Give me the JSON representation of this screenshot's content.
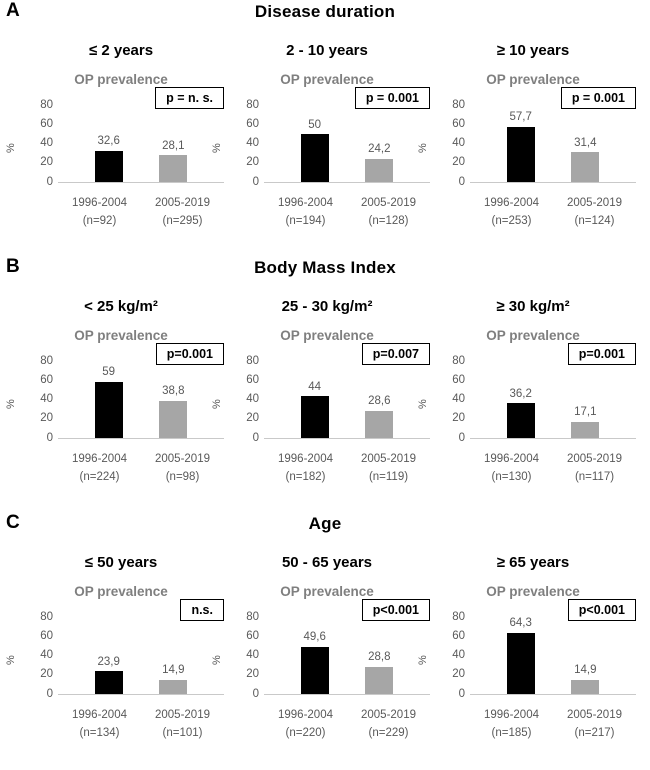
{
  "colors": {
    "bar_1996_2004": "#000000",
    "bar_2005_2019": "#a6a6a6",
    "subtitle_gray": "#7f7f7f",
    "axis_text_gray": "#595959",
    "axis_line": "#c9c9c9",
    "pbox_border": "#000000"
  },
  "panels": [
    {
      "letter": "A",
      "title": "Disease duration",
      "chart_indexes": [
        0,
        1,
        2
      ]
    },
    {
      "letter": "B",
      "title": "Body Mass Index",
      "chart_indexes": [
        3,
        4,
        5
      ]
    },
    {
      "letter": "C",
      "title": "Age",
      "chart_indexes": [
        6,
        7,
        8
      ]
    }
  ],
  "chart_data": [
    {
      "type": "bar",
      "panel": "A",
      "title": "≤ 2 years",
      "subtitle": "OP prevalence",
      "p_label": "p = n. s.",
      "ylabel": "%",
      "yticks": [
        0,
        20,
        40,
        60,
        80
      ],
      "ylim": [
        0,
        90
      ],
      "grid": false,
      "categories": [
        "1996-2004",
        "2005-2019"
      ],
      "n_labels": [
        "(n=92)",
        "(n=295)"
      ],
      "values": [
        32.6,
        28.1
      ],
      "value_labels": [
        "32,6",
        "28,1"
      ]
    },
    {
      "type": "bar",
      "panel": "A",
      "title": "2 - 10 years",
      "subtitle": "OP prevalence",
      "p_label": "p = 0.001",
      "ylabel": "%",
      "yticks": [
        0,
        20,
        40,
        60,
        80
      ],
      "ylim": [
        0,
        90
      ],
      "grid": false,
      "categories": [
        "1996-2004",
        "2005-2019"
      ],
      "n_labels": [
        "(n=194)",
        "(n=128)"
      ],
      "values": [
        50,
        24.2
      ],
      "value_labels": [
        "50",
        "24,2"
      ]
    },
    {
      "type": "bar",
      "panel": "A",
      "title": "≥ 10 years",
      "subtitle": "OP prevalence",
      "p_label": "p = 0.001",
      "ylabel": "%",
      "yticks": [
        0,
        20,
        40,
        60,
        80
      ],
      "ylim": [
        0,
        90
      ],
      "grid": false,
      "categories": [
        "1996-2004",
        "2005-2019"
      ],
      "n_labels": [
        "(n=253)",
        "(n=124)"
      ],
      "values": [
        57.7,
        31.4
      ],
      "value_labels": [
        "57,7",
        "31,4"
      ]
    },
    {
      "type": "bar",
      "panel": "B",
      "title": "< 25 kg/m²",
      "subtitle": "OP prevalence",
      "p_label": "p=0.001",
      "ylabel": "%",
      "yticks": [
        0,
        20,
        40,
        60,
        80
      ],
      "ylim": [
        0,
        90
      ],
      "grid": false,
      "categories": [
        "1996-2004",
        "2005-2019"
      ],
      "n_labels": [
        "(n=224)",
        "(n=98)"
      ],
      "values": [
        59,
        38.8
      ],
      "value_labels": [
        "59",
        "38,8"
      ]
    },
    {
      "type": "bar",
      "panel": "B",
      "title": "25 - 30 kg/m²",
      "subtitle": "OP prevalence",
      "p_label": "p=0.007",
      "ylabel": "%",
      "yticks": [
        0,
        20,
        40,
        60,
        80
      ],
      "ylim": [
        0,
        90
      ],
      "grid": false,
      "categories": [
        "1996-2004",
        "2005-2019"
      ],
      "n_labels": [
        "(n=182)",
        "(n=119)"
      ],
      "values": [
        44,
        28.6
      ],
      "value_labels": [
        "44",
        "28,6"
      ]
    },
    {
      "type": "bar",
      "panel": "B",
      "title": "≥ 30 kg/m²",
      "subtitle": "OP prevalence",
      "p_label": "p=0.001",
      "ylabel": "%",
      "yticks": [
        0,
        20,
        40,
        60,
        80
      ],
      "ylim": [
        0,
        90
      ],
      "grid": false,
      "categories": [
        "1996-2004",
        "2005-2019"
      ],
      "n_labels": [
        "(n=130)",
        "(n=117)"
      ],
      "values": [
        36.2,
        17.1
      ],
      "value_labels": [
        "36,2",
        "17,1"
      ]
    },
    {
      "type": "bar",
      "panel": "C",
      "title": "≤ 50 years",
      "subtitle": "OP prevalence",
      "p_label": "n.s.",
      "ylabel": "%",
      "yticks": [
        0,
        20,
        40,
        60,
        80
      ],
      "ylim": [
        0,
        90
      ],
      "grid": false,
      "categories": [
        "1996-2004",
        "2005-2019"
      ],
      "n_labels": [
        "(n=134)",
        "(n=101)"
      ],
      "values": [
        23.9,
        14.9
      ],
      "value_labels": [
        "23,9",
        "14,9"
      ]
    },
    {
      "type": "bar",
      "panel": "C",
      "title": "50 - 65 years",
      "subtitle": "OP prevalence",
      "p_label": "p<0.001",
      "ylabel": "%",
      "yticks": [
        0,
        20,
        40,
        60,
        80
      ],
      "ylim": [
        0,
        90
      ],
      "grid": false,
      "categories": [
        "1996-2004",
        "2005-2019"
      ],
      "n_labels": [
        "(n=220)",
        "(n=229)"
      ],
      "values": [
        49.6,
        28.8
      ],
      "value_labels": [
        "49,6",
        "28,8"
      ]
    },
    {
      "type": "bar",
      "panel": "C",
      "title": "≥ 65 years",
      "subtitle": "OP prevalence",
      "p_label": "p<0.001",
      "ylabel": "%",
      "yticks": [
        0,
        20,
        40,
        60,
        80
      ],
      "ylim": [
        0,
        90
      ],
      "grid": false,
      "categories": [
        "1996-2004",
        "2005-2019"
      ],
      "n_labels": [
        "(n=185)",
        "(n=217)"
      ],
      "values": [
        64.3,
        14.9
      ],
      "value_labels": [
        "64,3",
        "14,9"
      ]
    }
  ]
}
